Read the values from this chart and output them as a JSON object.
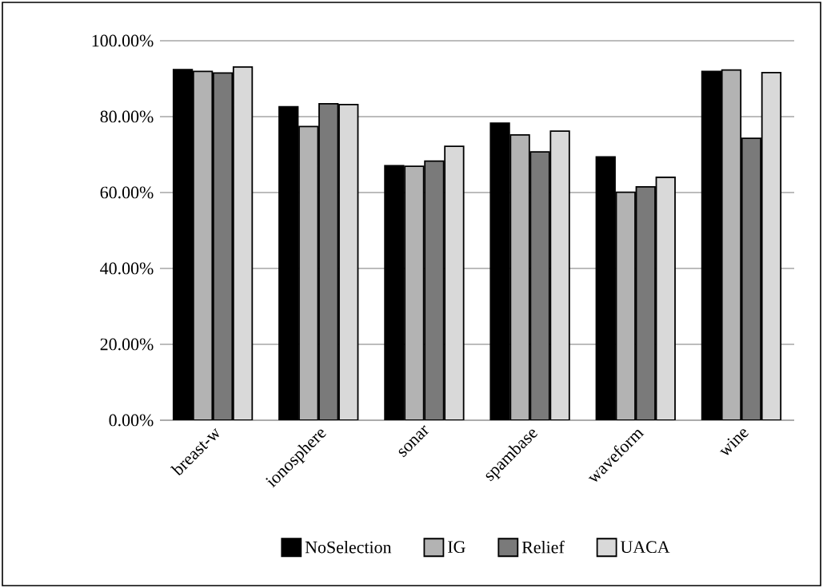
{
  "chart_data": {
    "type": "bar",
    "categories": [
      "breast-w",
      "ionosphere",
      "sonar",
      "spambase",
      "waveform",
      "wine"
    ],
    "series": [
      {
        "name": "NoSelection",
        "color": "#000000",
        "values": [
          92.4,
          82.6,
          67.1,
          78.3,
          69.4,
          91.9
        ]
      },
      {
        "name": "IG",
        "color": "#b3b3b3",
        "values": [
          91.9,
          77.4,
          66.9,
          75.2,
          60.1,
          92.3
        ]
      },
      {
        "name": "Relief",
        "color": "#7a7a7a",
        "values": [
          91.5,
          83.4,
          68.3,
          70.7,
          61.5,
          74.3
        ]
      },
      {
        "name": "UACA",
        "color": "#d9d9d9",
        "values": [
          93.1,
          83.2,
          72.2,
          76.2,
          64.0,
          91.6
        ]
      }
    ],
    "ylim": [
      0,
      100
    ],
    "yticks": [
      {
        "value": 0,
        "label": "0.00%"
      },
      {
        "value": 20,
        "label": "20.00%"
      },
      {
        "value": 40,
        "label": "40.00%"
      },
      {
        "value": 60,
        "label": "60.00%"
      },
      {
        "value": 80,
        "label": "80.00%"
      },
      {
        "value": 100,
        "label": "100.00%"
      }
    ],
    "grid": "y",
    "legend": "bottom"
  }
}
